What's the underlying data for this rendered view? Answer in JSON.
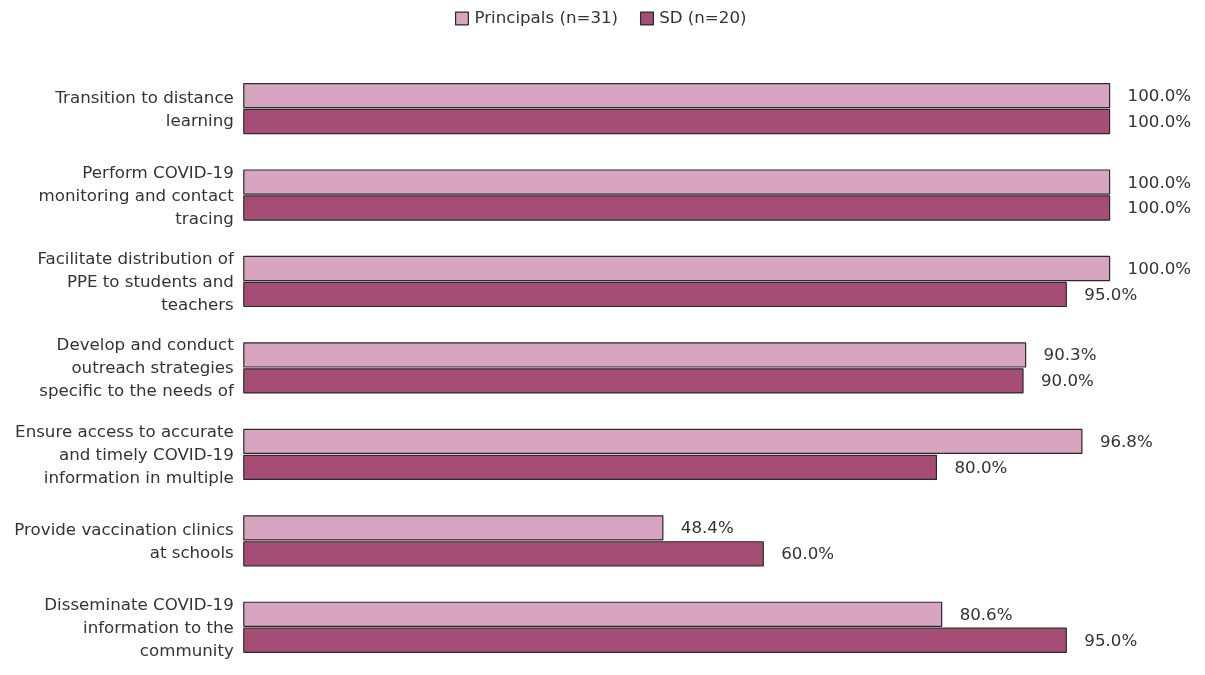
{
  "chart_data": {
    "type": "bar",
    "orientation": "horizontal",
    "legend": "top",
    "grid": false,
    "categories": [
      "Transition to distance\nlearning",
      "Perform COVID-19\nmonitoring and contact\ntracing",
      "Facilitate distribution of\nPPE to students and\nteachers",
      "Develop and conduct\noutreach strategies\nspecific to the needs of",
      "Ensure access to accurate\nand timely COVID-19\ninformation in multiple",
      "Provide vaccination clinics\nat schools",
      "Disseminate COVID-19\ninformation to the\ncommunity"
    ],
    "series": [
      {
        "name": "Principals (n=31)",
        "color": "#d8a5c0",
        "values": [
          100.0,
          100.0,
          100.0,
          90.3,
          96.8,
          48.4,
          80.6
        ],
        "value_labels": [
          "100.0%",
          "100.0%",
          "100.0%",
          "90.3%",
          "96.8%",
          "48.4%",
          "80.6%"
        ]
      },
      {
        "name": "SD (n=20)",
        "color": "#a64d75",
        "values": [
          100.0,
          100.0,
          95.0,
          90.0,
          80.0,
          60.0,
          95.0
        ],
        "value_labels": [
          "100.0%",
          "100.0%",
          "95.0%",
          "90.0%",
          "80.0%",
          "60.0%",
          "95.0%"
        ]
      }
    ]
  }
}
